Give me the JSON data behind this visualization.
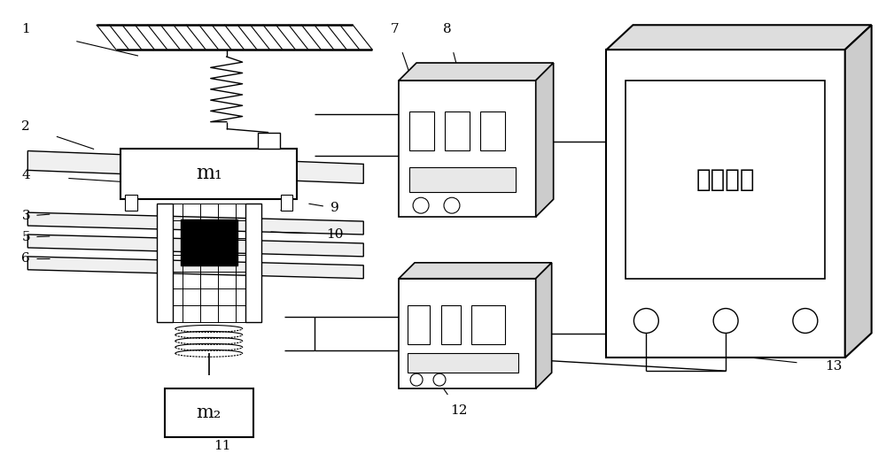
{
  "bg_color": "#ffffff",
  "line_color": "#000000",
  "control_text": "控制系统",
  "m1_text": "m₁",
  "m2_text": "m₂"
}
